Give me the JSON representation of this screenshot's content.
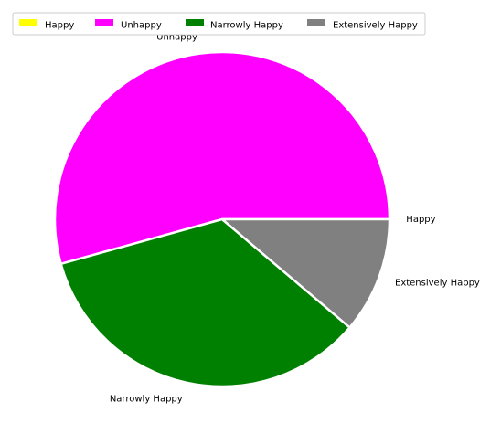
{
  "chart_data": {
    "type": "pie",
    "title": "",
    "categories": [
      "Happy",
      "Unhappy",
      "Narrowly Happy",
      "Extensively Happy"
    ],
    "values": [
      0.0,
      54.3,
      34.5,
      11.2
    ],
    "colors": [
      "#ffff00",
      "#ff00ff",
      "#008000",
      "#808080"
    ],
    "legend": {
      "placement": "top",
      "entries": [
        "Happy",
        "Unhappy",
        "Narrowly Happy",
        "Extensively Happy"
      ]
    }
  }
}
